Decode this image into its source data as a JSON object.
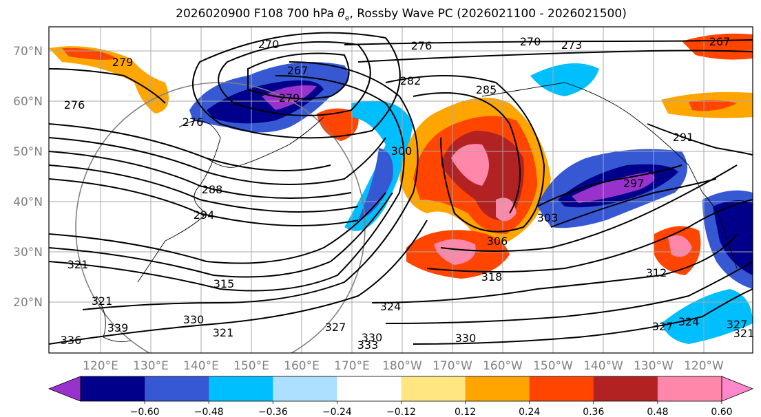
{
  "title_pre": "2026020900 F108 700 hPa ",
  "title_theta": "θ",
  "title_sub": "e",
  "title_post": ", Rossby Wave PC (2026021100 - 2026021500)",
  "lat_labels": [
    "70°N",
    "60°N",
    "50°N",
    "40°N",
    "30°N",
    "20°N"
  ],
  "lon_labels": [
    "120°E",
    "130°E",
    "140°E",
    "150°E",
    "160°E",
    "170°E",
    "180°W",
    "170°W",
    "160°W",
    "150°W",
    "140°W",
    "130°W",
    "120°W"
  ],
  "contour_labels": [
    "270",
    "270",
    "273",
    "276",
    "279",
    "267",
    "279",
    "276",
    "267",
    "282",
    "285",
    "276",
    "288",
    "294",
    "300",
    "297",
    "303",
    "306",
    "291",
    "321",
    "315",
    "312",
    "318",
    "324",
    "321",
    "330",
    "339",
    "336",
    "321",
    "327",
    "330",
    "333",
    "330",
    "324",
    "327",
    "327",
    "321"
  ],
  "colorbar": {
    "colors": [
      "#9932CC",
      "#00008B",
      "#3658D2",
      "#00BFFF",
      "#ADDFFF",
      "#FFFFFF",
      "#FFE680",
      "#FFA500",
      "#FF4500",
      "#B22222",
      "#FF88AA",
      "#FF88CC"
    ],
    "ticks": [
      "−0.60",
      "−0.48",
      "−0.36",
      "−0.24",
      "−0.12",
      "0.12",
      "0.24",
      "0.36",
      "0.48",
      "0.60"
    ]
  }
}
